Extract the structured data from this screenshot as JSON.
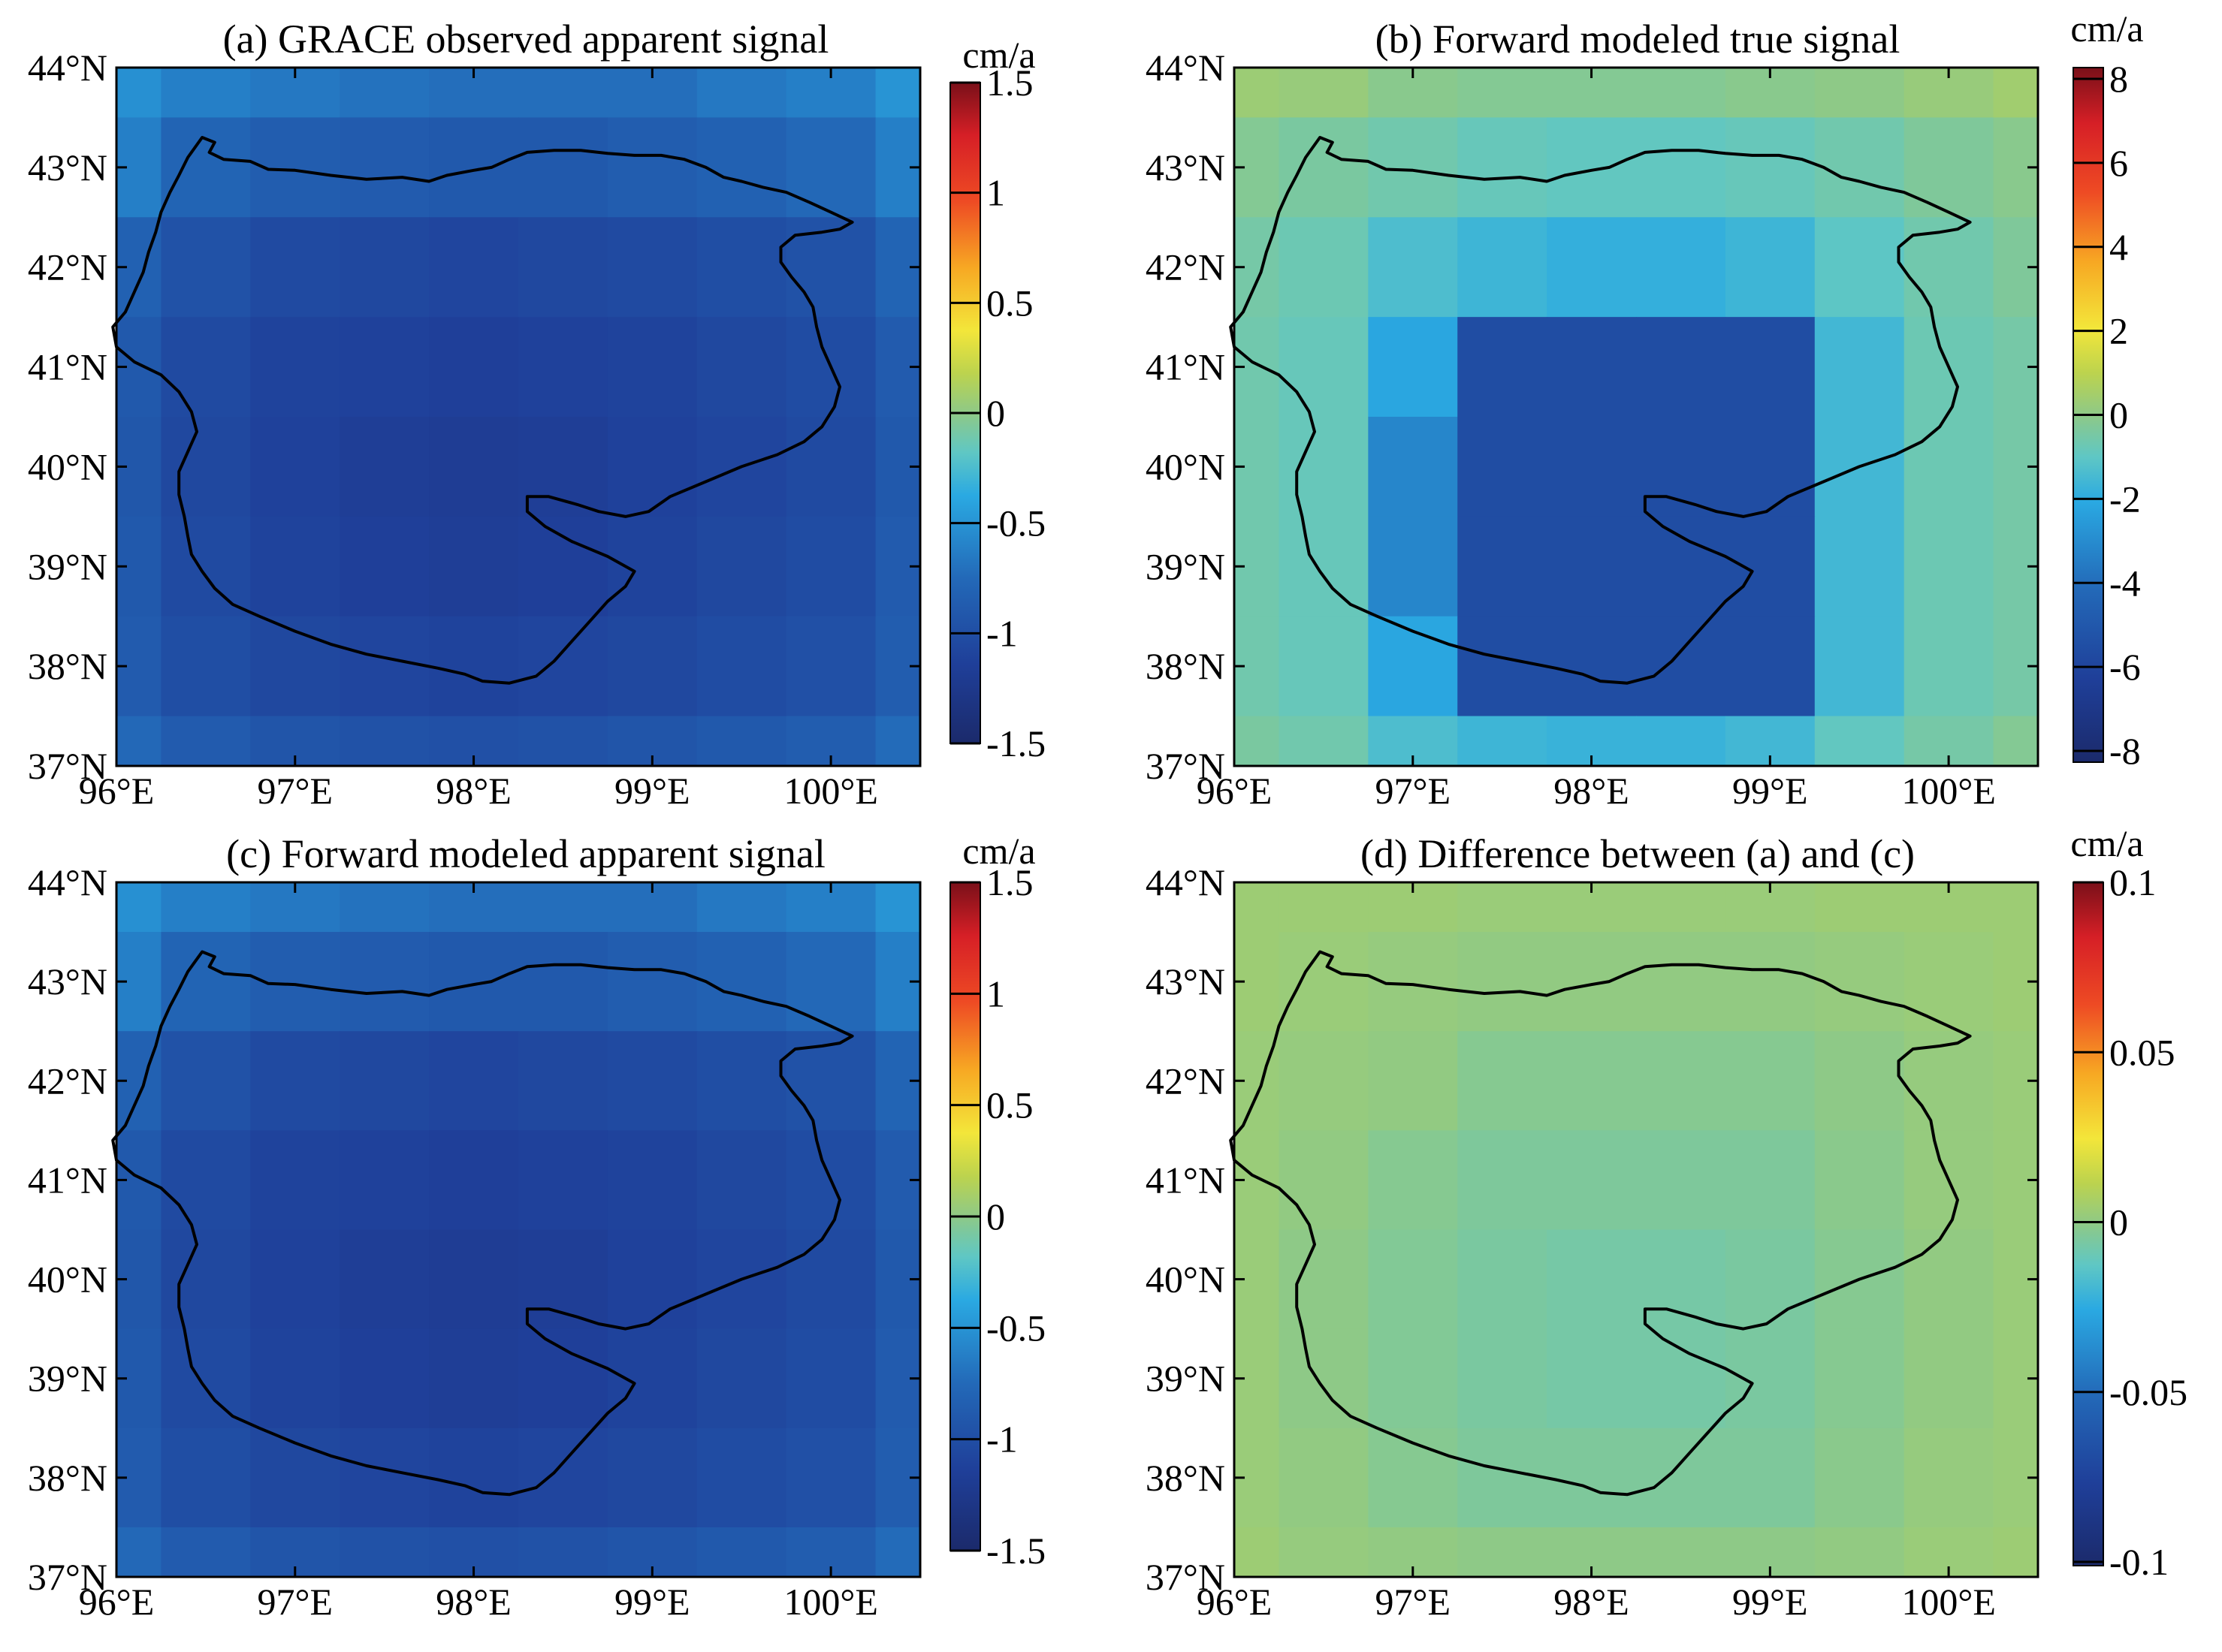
{
  "chart_data": [
    {
      "type": "heatmap",
      "title": "(a) GRACE observed apparent signal",
      "colorbar_unit": "cm/a",
      "clim": [
        -1.5,
        1.5
      ],
      "colorbar_ticks": [
        "1.5",
        "1",
        "0.5",
        "0",
        "-0.5",
        "-1",
        "-1.5"
      ],
      "xlim": [
        96,
        100.5
      ],
      "ylim": [
        37,
        44
      ],
      "xticks": [
        "96°E",
        "97°E",
        "98°E",
        "99°E",
        "100°E"
      ],
      "yticks": [
        "44°N",
        "43°N",
        "42°N",
        "41°N",
        "40°N",
        "39°N",
        "38°N",
        "37°N"
      ],
      "grid_cols_lon": [
        96.0,
        96.25,
        96.75,
        97.25,
        97.75,
        98.25,
        98.75,
        99.25,
        99.75,
        100.25,
        100.5
      ],
      "grid_rows_lat": [
        44.0,
        43.5,
        42.5,
        41.5,
        40.5,
        39.5,
        38.5,
        37.5,
        37.0
      ],
      "values": [
        [
          -0.52,
          -0.62,
          -0.66,
          -0.7,
          -0.72,
          -0.72,
          -0.72,
          -0.66,
          -0.62,
          -0.5
        ],
        [
          -0.62,
          -0.8,
          -0.86,
          -0.88,
          -0.9,
          -0.9,
          -0.86,
          -0.82,
          -0.76,
          -0.62
        ],
        [
          -0.82,
          -0.96,
          -1.04,
          -1.06,
          -1.08,
          -1.06,
          -1.04,
          -1.0,
          -0.96,
          -0.8
        ],
        [
          -0.9,
          -1.04,
          -1.1,
          -1.12,
          -1.14,
          -1.12,
          -1.1,
          -1.06,
          -1.02,
          -0.88
        ],
        [
          -0.92,
          -1.06,
          -1.12,
          -1.16,
          -1.18,
          -1.16,
          -1.12,
          -1.08,
          -1.04,
          -0.9
        ],
        [
          -0.9,
          -1.04,
          -1.1,
          -1.14,
          -1.16,
          -1.14,
          -1.1,
          -1.06,
          -1.02,
          -0.88
        ],
        [
          -0.88,
          -1.0,
          -1.06,
          -1.08,
          -1.1,
          -1.08,
          -1.06,
          -1.02,
          -0.98,
          -0.86
        ],
        [
          -0.76,
          -0.88,
          -0.94,
          -0.96,
          -0.98,
          -0.96,
          -0.94,
          -0.9,
          -0.86,
          -0.74
        ]
      ]
    },
    {
      "type": "heatmap",
      "title": "(b) Forward modeled true signal",
      "colorbar_unit": "cm/a",
      "clim": [
        -8,
        8
      ],
      "colorbar_ticks": [
        "8",
        "6",
        "4",
        "2",
        "0",
        "-2",
        "-4",
        "-6",
        "-8"
      ],
      "xlim": [
        96,
        100.5
      ],
      "ylim": [
        37,
        44
      ],
      "xticks": [
        "96°E",
        "97°E",
        "98°E",
        "99°E",
        "100°E"
      ],
      "yticks": [
        "44°N",
        "43°N",
        "42°N",
        "41°N",
        "40°N",
        "39°N",
        "38°N",
        "37°N"
      ],
      "grid_cols_lon": [
        96.0,
        96.25,
        96.75,
        97.25,
        97.75,
        98.25,
        98.75,
        99.25,
        99.75,
        100.25,
        100.5
      ],
      "grid_rows_lat": [
        44.0,
        43.5,
        42.5,
        41.5,
        40.5,
        39.5,
        38.5,
        37.5,
        37.0
      ],
      "values": [
        [
          0.3,
          0.2,
          -0.1,
          -0.2,
          -0.2,
          -0.2,
          -0.1,
          0.0,
          0.2,
          0.4
        ],
        [
          -0.2,
          -0.4,
          -0.6,
          -0.8,
          -0.9,
          -0.9,
          -0.8,
          -0.6,
          -0.3,
          -0.1
        ],
        [
          -0.5,
          -0.7,
          -1.3,
          -1.6,
          -1.8,
          -1.8,
          -1.6,
          -1.0,
          -0.6,
          -0.3
        ],
        [
          -0.6,
          -0.8,
          -2.1,
          -5.4,
          -5.4,
          -5.4,
          -5.4,
          -1.5,
          -0.7,
          -0.5
        ],
        [
          -0.6,
          -0.8,
          -3.1,
          -5.4,
          -5.4,
          -5.4,
          -5.4,
          -1.5,
          -0.7,
          -0.5
        ],
        [
          -0.6,
          -0.8,
          -3.1,
          -5.4,
          -5.4,
          -5.4,
          -5.4,
          -1.5,
          -0.7,
          -0.5
        ],
        [
          -0.6,
          -0.8,
          -2.1,
          -5.4,
          -5.4,
          -5.4,
          -5.4,
          -1.5,
          -0.7,
          -0.5
        ],
        [
          -0.4,
          -0.6,
          -1.3,
          -1.6,
          -1.7,
          -1.7,
          -1.5,
          -0.9,
          -0.5,
          -0.2
        ]
      ]
    },
    {
      "type": "heatmap",
      "title": "(c) Forward modeled apparent signal",
      "colorbar_unit": "cm/a",
      "clim": [
        -1.5,
        1.5
      ],
      "colorbar_ticks": [
        "1.5",
        "1",
        "0.5",
        "0",
        "-0.5",
        "-1",
        "-1.5"
      ],
      "xlim": [
        96,
        100.5
      ],
      "ylim": [
        37,
        44
      ],
      "xticks": [
        "96°E",
        "97°E",
        "98°E",
        "99°E",
        "100°E"
      ],
      "yticks": [
        "44°N",
        "43°N",
        "42°N",
        "41°N",
        "40°N",
        "39°N",
        "38°N",
        "37°N"
      ],
      "grid_cols_lon": [
        96.0,
        96.25,
        96.75,
        97.25,
        97.75,
        98.25,
        98.75,
        99.25,
        99.75,
        100.25,
        100.5
      ],
      "grid_rows_lat": [
        44.0,
        43.5,
        42.5,
        41.5,
        40.5,
        39.5,
        38.5,
        37.5,
        37.0
      ],
      "values": [
        [
          -0.52,
          -0.62,
          -0.66,
          -0.7,
          -0.72,
          -0.72,
          -0.72,
          -0.66,
          -0.62,
          -0.5
        ],
        [
          -0.62,
          -0.8,
          -0.86,
          -0.88,
          -0.9,
          -0.9,
          -0.86,
          -0.82,
          -0.76,
          -0.62
        ],
        [
          -0.82,
          -0.96,
          -1.04,
          -1.06,
          -1.08,
          -1.06,
          -1.04,
          -1.0,
          -0.96,
          -0.8
        ],
        [
          -0.9,
          -1.04,
          -1.1,
          -1.12,
          -1.14,
          -1.12,
          -1.1,
          -1.06,
          -1.02,
          -0.88
        ],
        [
          -0.92,
          -1.06,
          -1.12,
          -1.16,
          -1.18,
          -1.16,
          -1.12,
          -1.08,
          -1.04,
          -0.9
        ],
        [
          -0.9,
          -1.04,
          -1.1,
          -1.14,
          -1.16,
          -1.14,
          -1.1,
          -1.06,
          -1.02,
          -0.88
        ],
        [
          -0.88,
          -1.0,
          -1.06,
          -1.08,
          -1.1,
          -1.08,
          -1.06,
          -1.02,
          -0.98,
          -0.86
        ],
        [
          -0.76,
          -0.88,
          -0.94,
          -0.96,
          -0.98,
          -0.96,
          -0.94,
          -0.9,
          -0.86,
          -0.74
        ]
      ]
    },
    {
      "type": "heatmap",
      "title": "(d) Difference between (a) and (c)",
      "colorbar_unit": "cm/a",
      "clim": [
        -0.1,
        0.1
      ],
      "colorbar_ticks": [
        "0.1",
        "0.05",
        "0",
        "-0.05",
        "-0.1"
      ],
      "xlim": [
        96,
        100.5
      ],
      "ylim": [
        37,
        44
      ],
      "xticks": [
        "96°E",
        "97°E",
        "98°E",
        "99°E",
        "100°E"
      ],
      "yticks": [
        "44°N",
        "43°N",
        "42°N",
        "41°N",
        "40°N",
        "39°N",
        "38°N",
        "37°N"
      ],
      "grid_cols_lon": [
        96.0,
        96.25,
        96.75,
        97.25,
        97.75,
        98.25,
        98.75,
        99.25,
        99.75,
        100.25,
        100.5
      ],
      "grid_rows_lat": [
        44.0,
        43.5,
        42.5,
        41.5,
        40.5,
        39.5,
        38.5,
        37.5,
        37.0
      ],
      "values": [
        [
          0.004,
          0.004,
          0.004,
          0.003,
          0.003,
          0.003,
          0.003,
          0.004,
          0.004,
          0.004
        ],
        [
          0.004,
          0.003,
          0.002,
          0.001,
          0.001,
          0.001,
          0.001,
          0.002,
          0.003,
          0.004
        ],
        [
          0.003,
          0.002,
          0.001,
          -0.002,
          -0.002,
          -0.002,
          -0.002,
          0.0,
          0.002,
          0.003
        ],
        [
          0.003,
          0.001,
          -0.002,
          -0.004,
          -0.004,
          -0.004,
          -0.004,
          -0.001,
          0.002,
          0.003
        ],
        [
          0.003,
          0.0,
          -0.003,
          -0.005,
          -0.006,
          -0.006,
          -0.005,
          -0.002,
          0.001,
          0.003
        ],
        [
          0.003,
          0.0,
          -0.003,
          -0.005,
          -0.006,
          -0.006,
          -0.005,
          -0.002,
          0.001,
          0.003
        ],
        [
          0.003,
          0.001,
          -0.002,
          -0.004,
          -0.004,
          -0.004,
          -0.004,
          -0.001,
          0.002,
          0.003
        ],
        [
          0.004,
          0.002,
          0.001,
          0.0,
          0.0,
          0.0,
          0.0,
          0.001,
          0.003,
          0.004
        ]
      ]
    }
  ],
  "basin_outline_lonlat": [
    [
      96.48,
      43.3
    ],
    [
      96.55,
      43.25
    ],
    [
      96.52,
      43.15
    ],
    [
      96.6,
      43.08
    ],
    [
      96.75,
      43.06
    ],
    [
      96.85,
      42.98
    ],
    [
      97.0,
      42.97
    ],
    [
      97.2,
      42.92
    ],
    [
      97.4,
      42.88
    ],
    [
      97.6,
      42.9
    ],
    [
      97.75,
      42.86
    ],
    [
      97.85,
      42.92
    ],
    [
      98.0,
      42.97
    ],
    [
      98.1,
      43.0
    ],
    [
      98.2,
      43.08
    ],
    [
      98.3,
      43.15
    ],
    [
      98.45,
      43.17
    ],
    [
      98.6,
      43.17
    ],
    [
      98.75,
      43.14
    ],
    [
      98.9,
      43.12
    ],
    [
      99.05,
      43.12
    ],
    [
      99.18,
      43.08
    ],
    [
      99.3,
      43.0
    ],
    [
      99.4,
      42.9
    ],
    [
      99.5,
      42.86
    ],
    [
      99.62,
      42.8
    ],
    [
      99.75,
      42.75
    ],
    [
      99.88,
      42.65
    ],
    [
      100.0,
      42.55
    ],
    [
      100.12,
      42.45
    ],
    [
      100.05,
      42.38
    ],
    [
      99.95,
      42.35
    ],
    [
      99.8,
      42.32
    ],
    [
      99.72,
      42.2
    ],
    [
      99.72,
      42.05
    ],
    [
      99.78,
      41.9
    ],
    [
      99.85,
      41.75
    ],
    [
      99.9,
      41.6
    ],
    [
      99.92,
      41.4
    ],
    [
      99.95,
      41.2
    ],
    [
      100.0,
      41.0
    ],
    [
      100.05,
      40.8
    ],
    [
      100.02,
      40.6
    ],
    [
      99.95,
      40.4
    ],
    [
      99.85,
      40.25
    ],
    [
      99.7,
      40.12
    ],
    [
      99.5,
      40.0
    ],
    [
      99.3,
      39.85
    ],
    [
      99.1,
      39.7
    ],
    [
      98.98,
      39.55
    ],
    [
      98.85,
      39.5
    ],
    [
      98.7,
      39.55
    ],
    [
      98.58,
      39.62
    ],
    [
      98.42,
      39.7
    ],
    [
      98.3,
      39.7
    ],
    [
      98.3,
      39.55
    ],
    [
      98.4,
      39.4
    ],
    [
      98.55,
      39.25
    ],
    [
      98.75,
      39.1
    ],
    [
      98.9,
      38.95
    ],
    [
      98.85,
      38.8
    ],
    [
      98.75,
      38.65
    ],
    [
      98.65,
      38.45
    ],
    [
      98.55,
      38.25
    ],
    [
      98.45,
      38.05
    ],
    [
      98.35,
      37.9
    ],
    [
      98.2,
      37.83
    ],
    [
      98.05,
      37.85
    ],
    [
      97.95,
      37.92
    ],
    [
      97.8,
      37.98
    ],
    [
      97.6,
      38.05
    ],
    [
      97.4,
      38.12
    ],
    [
      97.2,
      38.22
    ],
    [
      97.0,
      38.35
    ],
    [
      96.8,
      38.5
    ],
    [
      96.65,
      38.62
    ],
    [
      96.55,
      38.78
    ],
    [
      96.48,
      38.95
    ],
    [
      96.42,
      39.12
    ],
    [
      96.4,
      39.3
    ],
    [
      96.38,
      39.5
    ],
    [
      96.35,
      39.72
    ],
    [
      96.35,
      39.95
    ],
    [
      96.4,
      40.15
    ],
    [
      96.45,
      40.35
    ],
    [
      96.42,
      40.55
    ],
    [
      96.35,
      40.75
    ],
    [
      96.25,
      40.92
    ],
    [
      96.1,
      41.05
    ],
    [
      96.0,
      41.2
    ],
    [
      95.98,
      41.4
    ],
    [
      96.05,
      41.55
    ],
    [
      96.1,
      41.75
    ],
    [
      96.15,
      41.95
    ],
    [
      96.18,
      42.15
    ],
    [
      96.22,
      42.35
    ],
    [
      96.25,
      42.55
    ],
    [
      96.3,
      42.75
    ],
    [
      96.35,
      42.92
    ],
    [
      96.4,
      43.1
    ],
    [
      96.48,
      43.3
    ]
  ]
}
